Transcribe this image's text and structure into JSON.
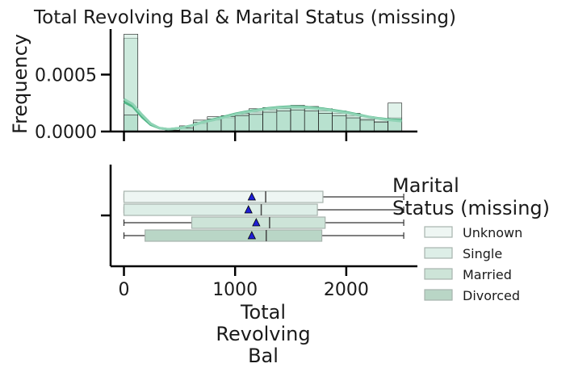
{
  "chart_data": [
    {
      "type": "histogram",
      "title": "Total Revolving Bal & Marital Status (missing)",
      "ylabel": "Frequency",
      "xlim": [
        -120,
        2640
      ],
      "ylim": [
        0,
        0.0009
      ],
      "yticks": [
        {
          "value": 0,
          "label": "0.0000"
        },
        {
          "value": 0.0005,
          "label": "0.0005"
        }
      ],
      "bin_width": 125,
      "bins_start": 0,
      "bars": [
        [
          0.00082,
          0.000855,
          0.000145
        ],
        [
          0,
          0,
          0
        ],
        [
          0,
          0,
          0
        ],
        [
          1e-05,
          1e-05,
          1e-05
        ],
        [
          3e-05,
          5e-05,
          3e-05
        ],
        [
          7e-05,
          0.0001,
          8e-05
        ],
        [
          0.0001,
          0.00013,
          0.00011
        ],
        [
          0.00012,
          0.00014,
          0.00013
        ],
        [
          0.00015,
          0.00016,
          0.00014
        ],
        [
          0.00017,
          0.0002,
          0.00015
        ],
        [
          0.00019,
          0.00021,
          0.00017
        ],
        [
          0.0002,
          0.00022,
          0.00018
        ],
        [
          0.00021,
          0.00023,
          0.00019
        ],
        [
          0.0002,
          0.00022,
          0.00018
        ],
        [
          0.00018,
          0.0002,
          0.00016
        ],
        [
          0.00016,
          0.00018,
          0.00014
        ],
        [
          0.00014,
          0.00016,
          0.00012
        ],
        [
          0.00011,
          0.00013,
          0.0001
        ],
        [
          9e-05,
          0.00011,
          8e-05
        ],
        [
          0.00012,
          0.00025,
          0.0001
        ]
      ],
      "kde": [
        {
          "x": [
            0,
            80,
            160,
            240,
            320,
            400,
            500,
            600,
            700,
            800,
            900,
            1000,
            1100,
            1200,
            1300,
            1400,
            1500,
            1600,
            1700,
            1800,
            1900,
            2000,
            2100,
            2200,
            2300,
            2400,
            2500
          ],
          "y": [
            0.00026,
            0.00022,
            0.00013,
            6e-05,
            3e-05,
            2e-05,
            3e-05,
            5e-05,
            8e-05,
            0.000105,
            0.00013,
            0.000155,
            0.000175,
            0.00019,
            0.000205,
            0.000215,
            0.00022,
            0.000218,
            0.00021,
            0.0002,
            0.000185,
            0.00017,
            0.00015,
            0.00013,
            0.000115,
            0.000105,
            0.0001
          ],
          "color": "#4fb585"
        },
        {
          "x": [
            0,
            80,
            160,
            240,
            320,
            400,
            500,
            600,
            700,
            800,
            900,
            1000,
            1100,
            1200,
            1300,
            1400,
            1500,
            1600,
            1700,
            1800,
            1900,
            2000,
            2100,
            2200,
            2300,
            2400,
            2500
          ],
          "y": [
            0.000285,
            0.00024,
            0.00015,
            7e-05,
            3e-05,
            2e-05,
            3e-05,
            5e-05,
            8e-05,
            0.0001,
            0.000125,
            0.00015,
            0.00017,
            0.000185,
            0.0002,
            0.00021,
            0.000215,
            0.000213,
            0.000205,
            0.000195,
            0.00018,
            0.000165,
            0.000145,
            0.000128,
            0.000112,
            0.0001,
            9e-05
          ],
          "color": "#8fd3b5"
        }
      ]
    },
    {
      "type": "boxplot",
      "xlabel": "Total\nRevolving\nBal",
      "xlim": [
        -120,
        2640
      ],
      "xticks": [
        {
          "value": 0,
          "label": "0"
        },
        {
          "value": 1000,
          "label": "1000"
        },
        {
          "value": 2000,
          "label": "2000"
        }
      ],
      "legend": {
        "title": "Marital\nStatus (missing)",
        "placement": "right"
      },
      "series": [
        {
          "name": "Unknown",
          "whisker_low": 0,
          "q1": 0,
          "median": 1275,
          "q3": 1790,
          "whisker_high": 2517,
          "mean": 1150,
          "color": "#eef6f3"
        },
        {
          "name": "Single",
          "whisker_low": 0,
          "q1": 0,
          "median": 1235,
          "q3": 1740,
          "whisker_high": 2517,
          "mean": 1120,
          "color": "#ddeee7"
        },
        {
          "name": "Married",
          "whisker_low": 0,
          "q1": 610,
          "median": 1310,
          "q3": 1810,
          "whisker_high": 2517,
          "mean": 1190,
          "color": "#cde4d8"
        },
        {
          "name": "Divorced",
          "whisker_low": 0,
          "q1": 190,
          "median": 1280,
          "q3": 1780,
          "whisker_high": 2517,
          "mean": 1150,
          "color": "#b9d6c6"
        }
      ]
    }
  ]
}
